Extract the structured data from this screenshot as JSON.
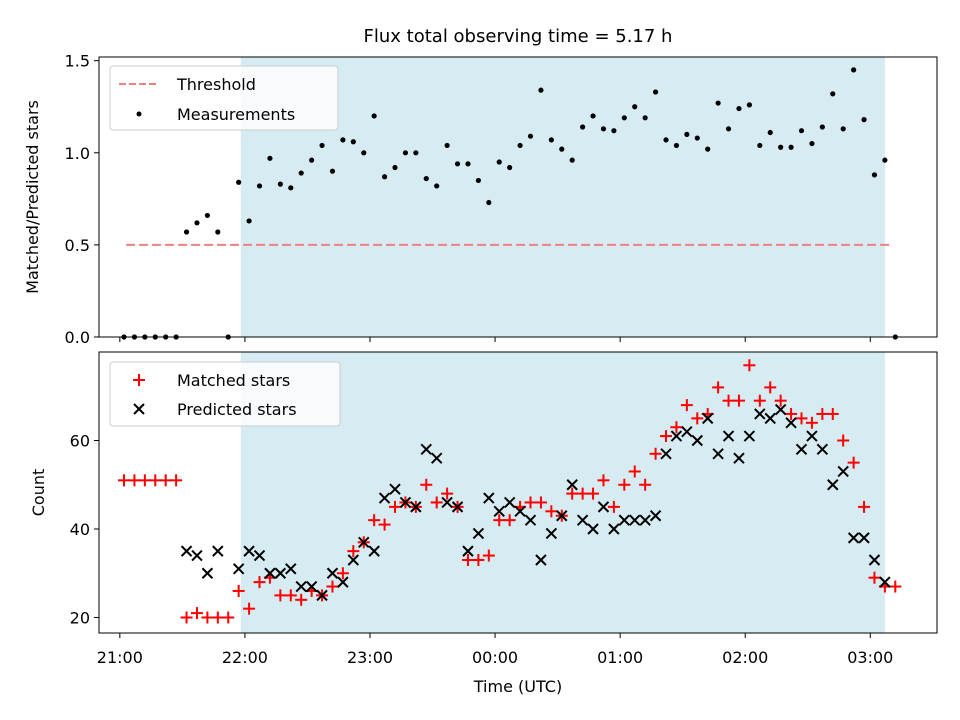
{
  "chart_data": [
    {
      "type": "scatter",
      "title": "Flux total observing time = 5.17 h",
      "xlabel": "",
      "ylabel": "Matched/Predicted stars",
      "xlim": [
        "20:50",
        "03:32"
      ],
      "ylim": [
        0,
        1.52
      ],
      "yticks": [
        "0.0",
        "0.5",
        "1.0",
        "1.5"
      ],
      "shaded_interval": [
        "21:58",
        "03:07"
      ],
      "legend": {
        "position": "top-left"
      },
      "threshold": {
        "name": "Threshold",
        "value": 0.5,
        "x_range": [
          "21:03",
          "03:10"
        ],
        "color": "#f08080"
      },
      "series": [
        {
          "name": "Measurements",
          "color": "#000000",
          "marker": "dot",
          "x": [
            "21:02",
            "21:07",
            "21:12",
            "21:17",
            "21:22",
            "21:27",
            "21:32",
            "21:37",
            "21:42",
            "21:47",
            "21:52",
            "21:57",
            "22:02",
            "22:07",
            "22:12",
            "22:17",
            "22:22",
            "22:27",
            "22:32",
            "22:37",
            "22:42",
            "22:47",
            "22:52",
            "22:57",
            "23:02",
            "23:07",
            "23:12",
            "23:17",
            "23:22",
            "23:27",
            "23:32",
            "23:37",
            "23:42",
            "23:47",
            "23:52",
            "23:57",
            "00:02",
            "00:07",
            "00:12",
            "00:17",
            "00:22",
            "00:27",
            "00:32",
            "00:37",
            "00:42",
            "00:47",
            "00:52",
            "00:57",
            "01:02",
            "01:07",
            "01:12",
            "01:17",
            "01:22",
            "01:27",
            "01:32",
            "01:37",
            "01:42",
            "01:47",
            "01:52",
            "01:57",
            "02:02",
            "02:07",
            "02:12",
            "02:17",
            "02:22",
            "02:27",
            "02:32",
            "02:37",
            "02:42",
            "02:47",
            "02:52",
            "02:57",
            "03:02",
            "03:07",
            "03:12"
          ],
          "y": [
            0,
            0,
            0,
            0,
            0,
            0,
            0.57,
            0.62,
            0.66,
            0.57,
            0,
            0.84,
            0.63,
            0.82,
            0.97,
            0.83,
            0.81,
            0.89,
            0.96,
            1.04,
            0.9,
            1.07,
            1.06,
            1.0,
            1.2,
            0.87,
            0.92,
            1.0,
            1.0,
            0.86,
            0.82,
            1.04,
            0.94,
            0.94,
            0.85,
            0.73,
            0.95,
            0.92,
            1.04,
            1.09,
            1.34,
            1.07,
            1.02,
            0.96,
            1.14,
            1.2,
            1.13,
            1.12,
            1.19,
            1.25,
            1.19,
            1.33,
            1.07,
            1.04,
            1.1,
            1.08,
            1.02,
            1.27,
            1.13,
            1.24,
            1.26,
            1.04,
            1.11,
            1.03,
            1.03,
            1.12,
            1.05,
            1.14,
            1.32,
            1.13,
            1.45,
            1.18,
            0.88,
            0.96,
            0
          ]
        }
      ]
    },
    {
      "type": "scatter",
      "title": "",
      "xlabel": "Time (UTC)",
      "ylabel": "Count",
      "xlim": [
        "20:50",
        "03:32"
      ],
      "ylim": [
        16.5,
        80
      ],
      "yticks": [
        "20",
        "40",
        "60"
      ],
      "xticks": [
        "21:00",
        "22:00",
        "23:00",
        "00:00",
        "01:00",
        "02:00",
        "03:00"
      ],
      "shaded_interval": [
        "21:58",
        "03:07"
      ],
      "legend": {
        "position": "top-left"
      },
      "series": [
        {
          "name": "Matched stars",
          "color": "#ff0000",
          "marker": "plus",
          "x": [
            "21:02",
            "21:07",
            "21:12",
            "21:17",
            "21:22",
            "21:27",
            "21:32",
            "21:37",
            "21:42",
            "21:47",
            "21:52",
            "21:57",
            "22:02",
            "22:07",
            "22:12",
            "22:17",
            "22:22",
            "22:27",
            "22:32",
            "22:37",
            "22:42",
            "22:47",
            "22:52",
            "22:57",
            "23:02",
            "23:07",
            "23:12",
            "23:17",
            "23:22",
            "23:27",
            "23:32",
            "23:37",
            "23:42",
            "23:47",
            "23:52",
            "23:57",
            "00:02",
            "00:07",
            "00:12",
            "00:17",
            "00:22",
            "00:27",
            "00:32",
            "00:37",
            "00:42",
            "00:47",
            "00:52",
            "00:57",
            "01:02",
            "01:07",
            "01:12",
            "01:17",
            "01:22",
            "01:27",
            "01:32",
            "01:37",
            "01:42",
            "01:47",
            "01:52",
            "01:57",
            "02:02",
            "02:07",
            "02:12",
            "02:17",
            "02:22",
            "02:27",
            "02:32",
            "02:37",
            "02:42",
            "02:47",
            "02:52",
            "02:57",
            "03:02",
            "03:07",
            "03:12"
          ],
          "y": [
            51,
            51,
            51,
            51,
            51,
            51,
            20,
            21,
            20,
            20,
            20,
            26,
            22,
            28,
            29,
            25,
            25,
            24,
            26,
            25,
            27,
            30,
            35,
            37,
            42,
            41,
            45,
            46,
            45,
            50,
            46,
            48,
            45,
            33,
            33,
            34,
            42,
            42,
            45,
            46,
            46,
            44,
            43,
            48,
            48,
            48,
            51,
            45,
            50,
            53,
            50,
            57,
            61,
            63,
            68,
            65,
            66,
            72,
            69,
            69,
            77,
            69,
            72,
            69,
            66,
            65,
            64,
            66,
            66,
            60,
            55,
            45,
            29,
            27,
            27
          ]
        },
        {
          "name": "Predicted stars",
          "color": "#000000",
          "marker": "x",
          "x": [
            "21:32",
            "21:37",
            "21:42",
            "21:47",
            "21:57",
            "22:02",
            "22:07",
            "22:12",
            "22:17",
            "22:22",
            "22:27",
            "22:32",
            "22:37",
            "22:42",
            "22:47",
            "22:52",
            "22:57",
            "23:02",
            "23:07",
            "23:12",
            "23:17",
            "23:22",
            "23:27",
            "23:32",
            "23:37",
            "23:42",
            "23:47",
            "23:52",
            "23:57",
            "00:02",
            "00:07",
            "00:12",
            "00:17",
            "00:22",
            "00:27",
            "00:32",
            "00:37",
            "00:42",
            "00:47",
            "00:52",
            "00:57",
            "01:02",
            "01:07",
            "01:12",
            "01:17",
            "01:22",
            "01:27",
            "01:32",
            "01:37",
            "01:42",
            "01:47",
            "01:52",
            "01:57",
            "02:02",
            "02:07",
            "02:12",
            "02:17",
            "02:22",
            "02:27",
            "02:32",
            "02:37",
            "02:42",
            "02:47",
            "02:52",
            "02:57",
            "03:02",
            "03:07"
          ],
          "y": [
            35,
            34,
            30,
            35,
            31,
            35,
            34,
            30,
            30,
            31,
            27,
            27,
            25,
            30,
            28,
            33,
            37,
            35,
            47,
            49,
            46,
            45,
            58,
            56,
            46,
            45,
            35,
            39,
            47,
            44,
            46,
            44,
            42,
            33,
            39,
            43,
            50,
            42,
            40,
            45,
            40,
            42,
            42,
            42,
            43,
            57,
            61,
            62,
            60,
            65,
            57,
            61,
            56,
            61,
            66,
            65,
            67,
            64,
            58,
            61,
            58,
            50,
            53,
            38,
            38,
            33,
            28
          ]
        }
      ]
    }
  ]
}
